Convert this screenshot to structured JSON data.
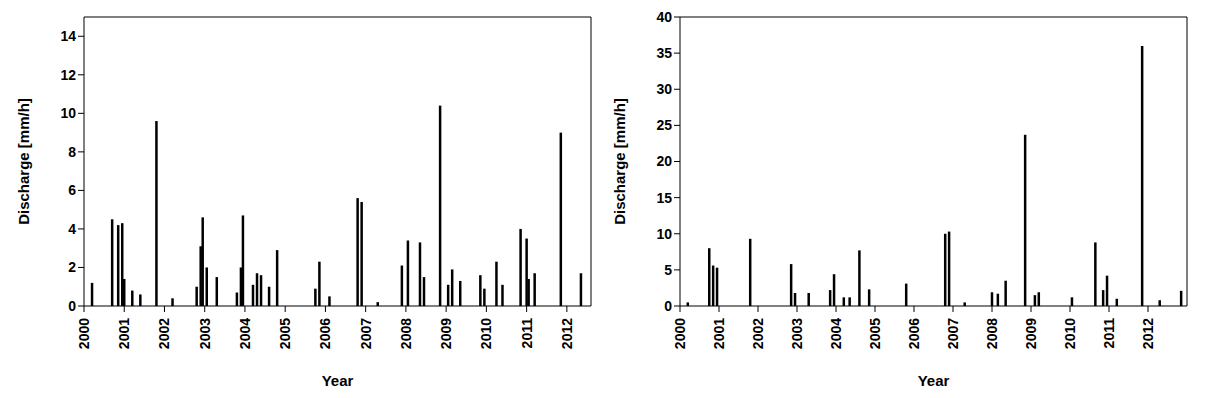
{
  "chart_data": [
    {
      "type": "bar",
      "color": "#000000",
      "xlabel": "Year",
      "ylabel": "Discharge [mm/h]",
      "xlim": [
        2000,
        2012.6
      ],
      "xticks": [
        2000,
        2001,
        2002,
        2003,
        2004,
        2005,
        2006,
        2007,
        2008,
        2009,
        2010,
        2011,
        2012
      ],
      "ylim": [
        0,
        15
      ],
      "yticks": [
        0,
        2,
        4,
        6,
        8,
        10,
        12,
        14
      ],
      "x": [
        2000.2,
        2000.7,
        2000.85,
        2000.95,
        2001.0,
        2001.2,
        2001.4,
        2001.8,
        2002.2,
        2002.8,
        2002.9,
        2002.95,
        2003.05,
        2003.3,
        2003.8,
        2003.9,
        2003.95,
        2004.2,
        2004.3,
        2004.4,
        2004.6,
        2004.8,
        2005.75,
        2005.85,
        2006.1,
        2006.8,
        2006.9,
        2007.3,
        2007.9,
        2008.05,
        2008.35,
        2008.45,
        2008.85,
        2009.05,
        2009.15,
        2009.35,
        2009.85,
        2009.95,
        2010.25,
        2010.4,
        2010.85,
        2011.0,
        2011.05,
        2011.2,
        2011.85,
        2012.35
      ],
      "values": [
        1.2,
        4.5,
        4.2,
        4.3,
        1.4,
        0.8,
        0.6,
        9.6,
        0.4,
        1.0,
        3.1,
        4.6,
        2.0,
        1.5,
        0.7,
        2.0,
        4.7,
        1.1,
        1.7,
        1.6,
        1.0,
        2.9,
        0.9,
        2.3,
        0.5,
        5.6,
        5.4,
        0.2,
        2.1,
        3.4,
        3.3,
        1.5,
        10.4,
        1.1,
        1.9,
        1.3,
        1.6,
        0.9,
        2.3,
        1.1,
        4.0,
        3.5,
        1.4,
        1.7,
        9.0,
        1.7
      ]
    },
    {
      "type": "bar",
      "color": "#000000",
      "xlabel": "Year",
      "ylabel": "Discharge [mm/h]",
      "xlim": [
        2000,
        2013
      ],
      "xticks": [
        2000,
        2001,
        2002,
        2003,
        2004,
        2005,
        2006,
        2007,
        2008,
        2009,
        2010,
        2011,
        2012
      ],
      "ylim": [
        0,
        40
      ],
      "yticks": [
        0,
        5,
        10,
        15,
        20,
        25,
        30,
        35,
        40
      ],
      "x": [
        2000.2,
        2000.75,
        2000.85,
        2000.95,
        2001.8,
        2002.85,
        2002.95,
        2003.3,
        2003.85,
        2003.95,
        2004.2,
        2004.35,
        2004.6,
        2004.85,
        2005.8,
        2006.8,
        2006.9,
        2007.3,
        2008.0,
        2008.15,
        2008.35,
        2008.85,
        2009.1,
        2009.2,
        2010.05,
        2010.65,
        2010.85,
        2010.95,
        2011.2,
        2011.85,
        2012.3,
        2012.85
      ],
      "values": [
        0.5,
        8.0,
        5.6,
        5.3,
        9.3,
        5.8,
        1.8,
        1.8,
        2.2,
        4.4,
        1.2,
        1.2,
        7.7,
        2.3,
        3.1,
        10.0,
        10.3,
        0.5,
        1.9,
        1.7,
        3.5,
        23.7,
        1.5,
        1.9,
        1.2,
        8.8,
        2.2,
        4.2,
        1.0,
        36.0,
        0.8,
        2.1
      ]
    }
  ]
}
